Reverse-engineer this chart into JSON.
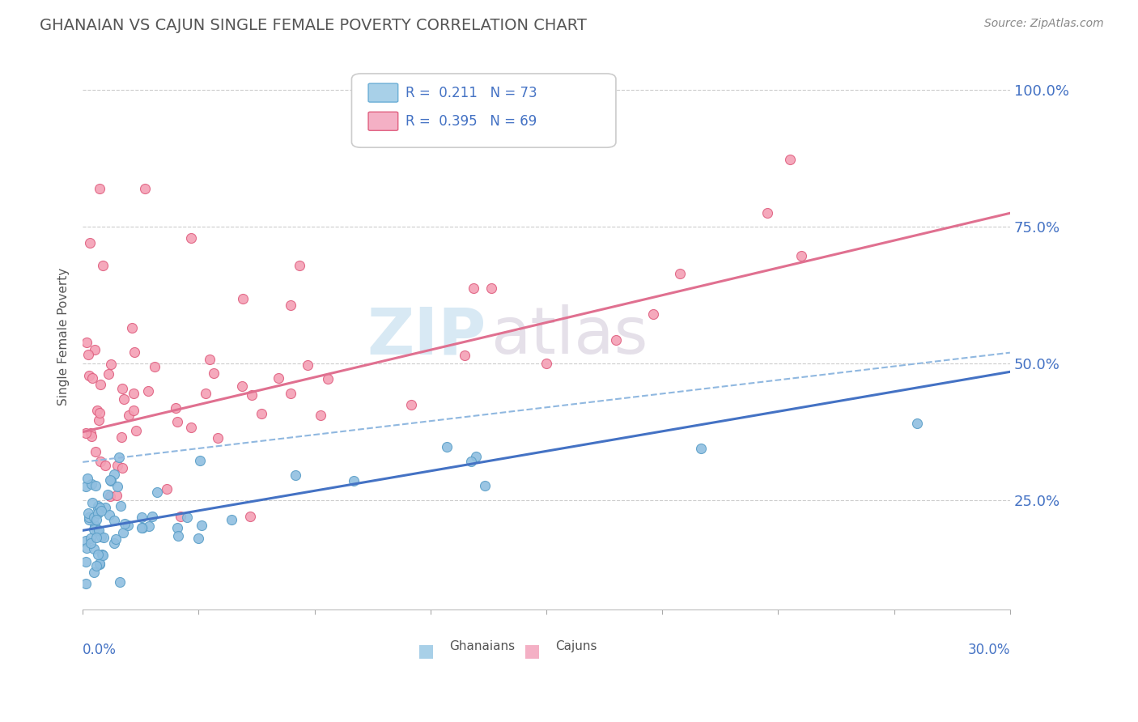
{
  "title": "GHANAIAN VS CAJUN SINGLE FEMALE POVERTY CORRELATION CHART",
  "source": "Source: ZipAtlas.com",
  "ylabel": "Single Female Poverty",
  "xlim": [
    0.0,
    0.3
  ],
  "ylim": [
    0.05,
    1.05
  ],
  "ytick_vals": [
    0.25,
    0.5,
    0.75,
    1.0
  ],
  "ytick_labels": [
    "25.0%",
    "50.0%",
    "75.0%",
    "100.0%"
  ],
  "ghanaian_scatter_color": "#90bfe0",
  "ghanaian_edge_color": "#5b9fc8",
  "cajun_scatter_color": "#f4a0b5",
  "cajun_edge_color": "#e06080",
  "trend_blue_color": "#4472c4",
  "trend_pink_color": "#e07090",
  "trend_dash_color": "#90b8e0",
  "watermark_zip_color": "#c8e0f0",
  "watermark_atlas_color": "#d0c8d8",
  "legend_text_color": "#4472c4",
  "title_color": "#555555",
  "source_color": "#888888",
  "ylabel_color": "#555555",
  "axis_label_color": "#4472c4",
  "grid_color": "#cccccc"
}
